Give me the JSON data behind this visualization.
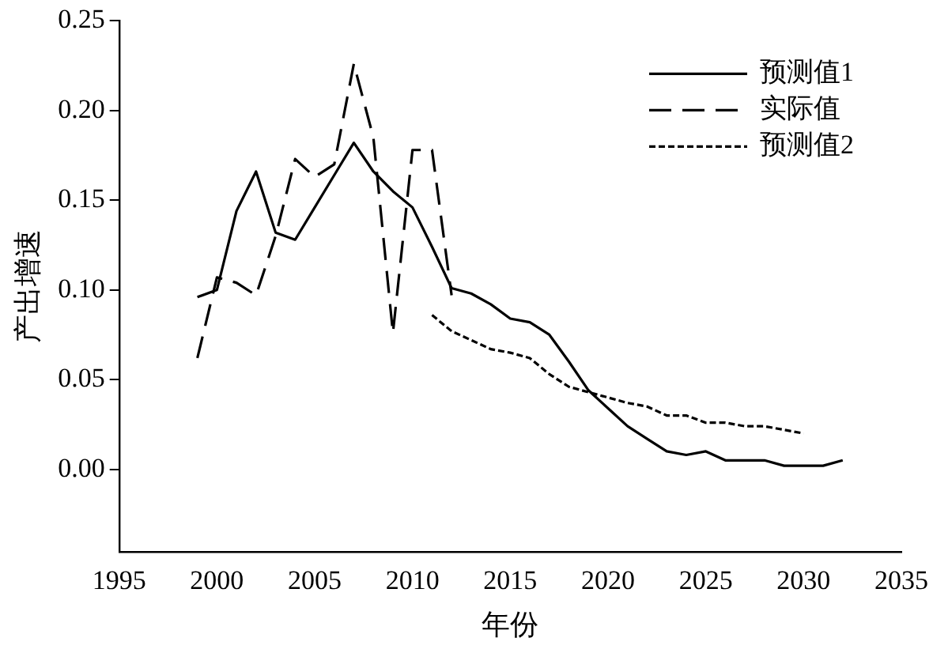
{
  "chart_data": {
    "type": "line",
    "xlabel": "年份",
    "ylabel": "产出增速",
    "xlim": [
      1995,
      2035
    ],
    "xticks": [
      1995,
      2000,
      2005,
      2010,
      2015,
      2020,
      2025,
      2030,
      2035
    ],
    "ylim": [
      -0.046,
      0.25
    ],
    "yticks": [
      {
        "value": 0,
        "label": "0.00"
      },
      {
        "value": 0.05,
        "label": "0.05"
      },
      {
        "value": 0.1,
        "label": "0.10"
      },
      {
        "value": 0.15,
        "label": "0.15"
      },
      {
        "value": 0.2,
        "label": "0.20"
      },
      {
        "value": 0.25,
        "label": "0.25"
      }
    ],
    "grid": false,
    "legend": "top right",
    "marker": "none",
    "series": [
      {
        "name": "预测值1",
        "color": "#000000",
        "line_style": "solid",
        "x": [
          1999,
          2000,
          2001,
          2002,
          2003,
          2004,
          2005,
          2006,
          2007,
          2008,
          2009,
          2010,
          2011,
          2012,
          2013,
          2014,
          2015,
          2016,
          2017,
          2018,
          2019,
          2020,
          2021,
          2022,
          2023,
          2024,
          2025,
          2026,
          2027,
          2028,
          2029,
          2030,
          2031,
          2032
        ],
        "values": [
          0.096,
          0.1,
          0.144,
          0.166,
          0.132,
          0.128,
          0.146,
          0.164,
          0.182,
          0.166,
          0.155,
          0.146,
          0.124,
          0.101,
          0.098,
          0.092,
          0.084,
          0.082,
          0.075,
          0.06,
          0.044,
          0.034,
          0.024,
          0.017,
          0.01,
          0.008,
          0.01,
          0.005,
          0.005,
          0.005,
          0.002,
          0.002,
          0.002,
          0.005
        ]
      },
      {
        "name": "实际值",
        "color": "#000000",
        "line_style": "dashed",
        "x": [
          1999,
          2000,
          2001,
          2002,
          2003,
          2004,
          2005,
          2006,
          2007,
          2008,
          2009,
          2010,
          2011,
          2012
        ],
        "values": [
          0.062,
          0.107,
          0.104,
          0.097,
          0.13,
          0.173,
          0.163,
          0.17,
          0.226,
          0.185,
          0.076,
          0.178,
          0.178,
          0.097
        ]
      },
      {
        "name": "预测值2",
        "color": "#000000",
        "line_style": "dashed",
        "x": [
          2011,
          2012,
          2013,
          2014,
          2015,
          2016,
          2017,
          2018,
          2019,
          2020,
          2021,
          2022,
          2023,
          2024,
          2025,
          2026,
          2027,
          2028,
          2029,
          2030
        ],
        "values": [
          0.086,
          0.077,
          0.072,
          0.067,
          0.065,
          0.062,
          0.053,
          0.046,
          0.043,
          0.04,
          0.037,
          0.035,
          0.03,
          0.03,
          0.026,
          0.026,
          0.024,
          0.024,
          0.022,
          0.02
        ]
      }
    ]
  }
}
